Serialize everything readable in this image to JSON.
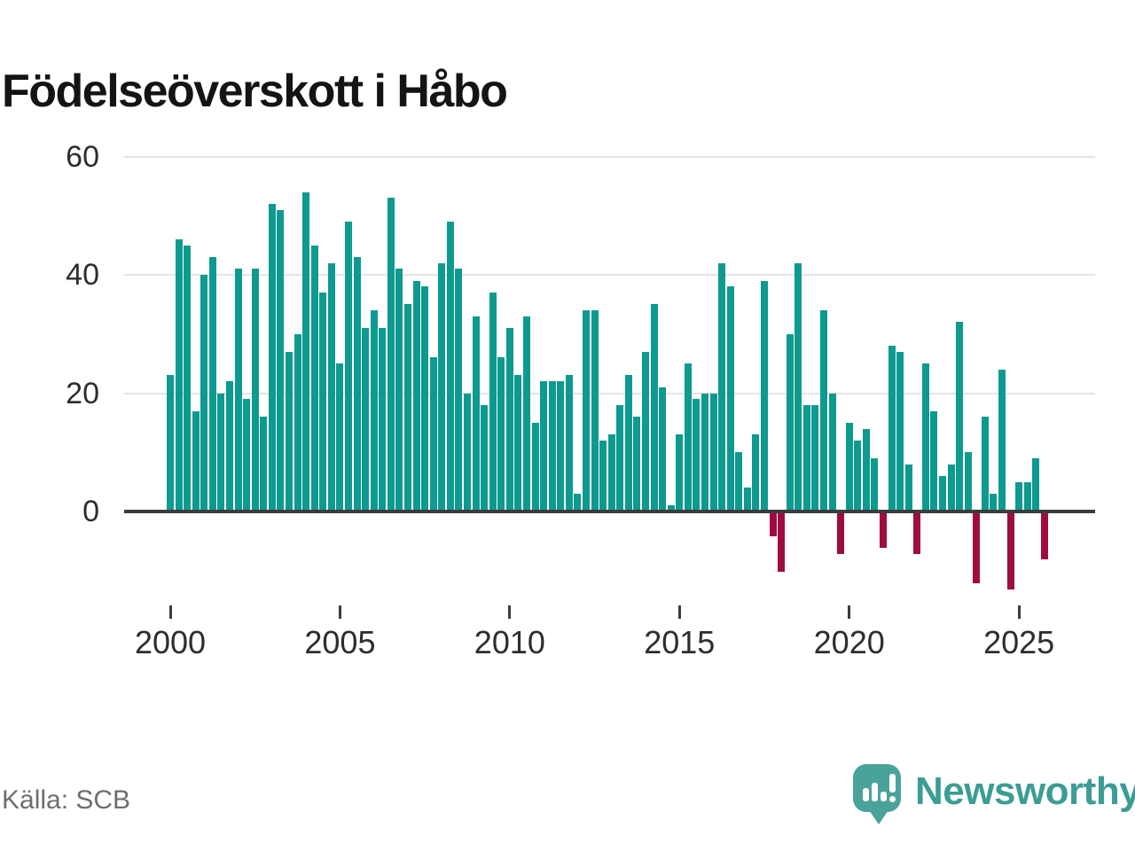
{
  "title": "Födelseöverskott i Håbo",
  "source": "Källa: SCB",
  "branding": {
    "name": "Newsworthy"
  },
  "colors": {
    "positive_bar": "#0e9a8f",
    "negative_bar": "#9e0c42",
    "gridline": "#e4e4e4",
    "axis": "#3c3c3c",
    "brand_teal": "#4aa39b"
  },
  "chart_data": {
    "type": "bar",
    "title": "Födelseöverskott i Håbo",
    "x_unit": "quarter",
    "start_period": "2000 Q1",
    "end_period": "2025 Q4",
    "values": [
      23,
      46,
      45,
      17,
      40,
      43,
      20,
      22,
      41,
      19,
      41,
      16,
      52,
      51,
      27,
      30,
      54,
      45,
      37,
      42,
      25,
      49,
      43,
      31,
      34,
      31,
      53,
      41,
      35,
      39,
      38,
      26,
      42,
      49,
      41,
      20,
      33,
      18,
      37,
      26,
      31,
      23,
      33,
      15,
      22,
      22,
      22,
      23,
      3,
      34,
      34,
      12,
      13,
      18,
      23,
      16,
      27,
      35,
      21,
      1,
      13,
      25,
      19,
      20,
      20,
      42,
      38,
      10,
      4,
      13,
      39,
      -4,
      -10,
      30,
      42,
      18,
      18,
      34,
      20,
      -7,
      15,
      12,
      14,
      9,
      -6,
      28,
      27,
      8,
      -7,
      25,
      17,
      6,
      8,
      32,
      10,
      -12,
      16,
      3,
      24,
      -13,
      5,
      5,
      9,
      -8
    ],
    "years_start": 2000,
    "yticks": [
      0,
      20,
      40,
      60
    ],
    "xticks": [
      2000,
      2005,
      2010,
      2015,
      2020,
      2025
    ],
    "ylim": [
      -15,
      62
    ],
    "grid": "horizontal",
    "legend": "none",
    "positive_color": "#0e9a8f",
    "negative_color": "#9e0c42"
  }
}
